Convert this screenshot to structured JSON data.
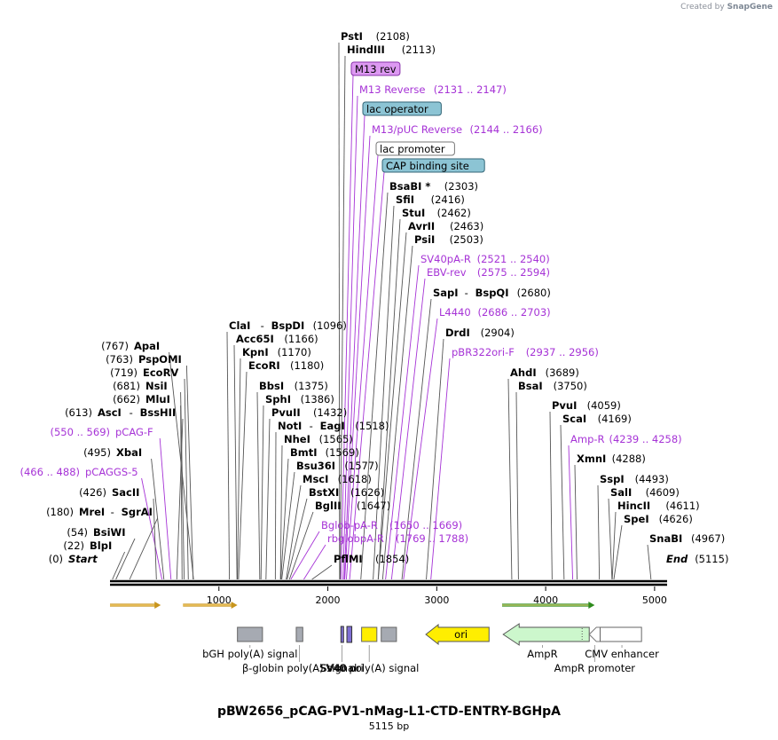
{
  "credit": {
    "prefix": "Created by",
    "brand": "SnapGene"
  },
  "plasmid": {
    "name": "pBW2656_pCAG-PV1-nMag-L1-CTD-ENTRY-BGHpA",
    "size_label": "5115 bp",
    "length": 5115
  },
  "ticks": [
    {
      "bp": 1000,
      "label": "1000"
    },
    {
      "bp": 2000,
      "label": "2000"
    },
    {
      "bp": 3000,
      "label": "3000"
    },
    {
      "bp": 4000,
      "label": "4000"
    },
    {
      "bp": 5000,
      "label": "5000"
    }
  ],
  "left_labels": [
    {
      "name": "ApaI",
      "pos": "(767)",
      "site": 767,
      "kind": "enzyme"
    },
    {
      "name": "PspOMI",
      "pos": "(763)",
      "site": 763,
      "kind": "enzyme"
    },
    {
      "name": "EcoRV",
      "pos": "(719)",
      "site": 719,
      "kind": "enzyme"
    },
    {
      "name": "NsiI",
      "pos": "(681)",
      "site": 681,
      "kind": "enzyme"
    },
    {
      "name": "MluI",
      "pos": "(662)",
      "site": 662,
      "kind": "enzyme"
    },
    {
      "name": "AscI",
      "name2": "BssHII",
      "pos": "(613)",
      "site": 613,
      "kind": "enzyme"
    },
    {
      "name": "pCAG-F",
      "pos": "(550 .. 569)",
      "site": 560,
      "kind": "primer"
    },
    {
      "name": "XbaI",
      "pos": "(495)",
      "site": 495,
      "kind": "enzyme"
    },
    {
      "name": "pCAGGS-5",
      "pos": "(466 .. 488)",
      "site": 477,
      "kind": "primer"
    },
    {
      "name": "SacII",
      "pos": "(426)",
      "site": 426,
      "kind": "enzyme"
    },
    {
      "name": "MreI",
      "name2": "SgrAI",
      "pos": "(180)",
      "site": 180,
      "kind": "enzyme"
    },
    {
      "name": "BsiWI",
      "pos": "(54)",
      "site": 54,
      "kind": "enzyme"
    },
    {
      "name": "BlpI",
      "pos": "(22)",
      "site": 22,
      "kind": "enzyme"
    },
    {
      "name": "Start",
      "pos": "(0)",
      "site": 0,
      "kind": "endpoint"
    }
  ],
  "right_labels": [
    {
      "name": "ClaI",
      "name2": "BspDI",
      "pos": "(1096)",
      "site": 1096,
      "kind": "enzyme"
    },
    {
      "name": "Acc65I",
      "pos": "(1166)",
      "site": 1166,
      "kind": "enzyme"
    },
    {
      "name": "KpnI",
      "pos": "(1170)",
      "site": 1170,
      "kind": "enzyme"
    },
    {
      "name": "EcoRI",
      "pos": "(1180)",
      "site": 1180,
      "kind": "enzyme"
    },
    {
      "name": "BbsI",
      "pos": "(1375)",
      "site": 1375,
      "kind": "enzyme"
    },
    {
      "name": "SphI",
      "pos": "(1386)",
      "site": 1386,
      "kind": "enzyme"
    },
    {
      "name": "PvuII",
      "pos": "(1432)",
      "site": 1432,
      "kind": "enzyme"
    },
    {
      "name": "NotI",
      "name2": "EagI",
      "pos": "(1518)",
      "site": 1518,
      "kind": "enzyme"
    },
    {
      "name": "NheI",
      "pos": "(1565)",
      "site": 1565,
      "kind": "enzyme"
    },
    {
      "name": "BmtI",
      "pos": "(1569)",
      "site": 1569,
      "kind": "enzyme"
    },
    {
      "name": "Bsu36I",
      "pos": "(1577)",
      "site": 1577,
      "kind": "enzyme"
    },
    {
      "name": "MscI",
      "pos": "(1618)",
      "site": 1618,
      "kind": "enzyme"
    },
    {
      "name": "BstXI",
      "pos": "(1626)",
      "site": 1626,
      "kind": "enzyme"
    },
    {
      "name": "BglII",
      "pos": "(1647)",
      "site": 1647,
      "kind": "enzyme"
    },
    {
      "name": "Bglob-pA-R",
      "pos": "(1650 .. 1669)",
      "site": 1660,
      "kind": "primer"
    },
    {
      "name": "rbglobpA-R",
      "pos": "(1769 .. 1788)",
      "site": 1779,
      "kind": "primer"
    },
    {
      "name": "PflMI",
      "pos": "(1854)",
      "site": 1854,
      "kind": "enzyme"
    },
    {
      "name": "PstI",
      "pos": "(2108)",
      "site": 2108,
      "kind": "enzyme"
    },
    {
      "name": "HindIII",
      "pos": "(2113)",
      "site": 2113,
      "kind": "enzyme"
    },
    {
      "name": "M13 rev",
      "pos": "",
      "site": 2120,
      "kind": "boxed",
      "fill": "#dd99f2",
      "stroke": "#8833aa"
    },
    {
      "name": "M13 Reverse",
      "pos": "(2131 .. 2147)",
      "site": 2139,
      "kind": "primer"
    },
    {
      "name": "lac operator",
      "pos": "",
      "site": 2150,
      "kind": "boxed",
      "fill": "#8cc4d4",
      "stroke": "#336677"
    },
    {
      "name": "M13/pUC Reverse",
      "pos": "(2144 .. 2166)",
      "site": 2155,
      "kind": "primer"
    },
    {
      "name": "lac promoter",
      "pos": "",
      "site": 2170,
      "kind": "boxed",
      "fill": "#ffffff",
      "stroke": "#777777"
    },
    {
      "name": "CAP binding site",
      "pos": "",
      "site": 2200,
      "kind": "boxed",
      "fill": "#8cc4d4",
      "stroke": "#336677"
    },
    {
      "name": "BsaBI *",
      "pos": "(2303)",
      "site": 2303,
      "kind": "enzyme"
    },
    {
      "name": "SfiI",
      "pos": "(2416)",
      "site": 2416,
      "kind": "enzyme"
    },
    {
      "name": "StuI",
      "pos": "(2462)",
      "site": 2462,
      "kind": "enzyme"
    },
    {
      "name": "AvrII",
      "pos": "(2463)",
      "site": 2463,
      "kind": "enzyme"
    },
    {
      "name": "PsiI",
      "pos": "(2503)",
      "site": 2503,
      "kind": "enzyme"
    },
    {
      "name": "SV40pA-R",
      "pos": "(2521 .. 2540)",
      "site": 2530,
      "kind": "primer"
    },
    {
      "name": "EBV-rev",
      "pos": "(2575 .. 2594)",
      "site": 2585,
      "kind": "primer"
    },
    {
      "name": "SapI",
      "name2": "BspQI",
      "pos": "(2680)",
      "site": 2680,
      "kind": "enzyme"
    },
    {
      "name": "L4440",
      "pos": "(2686 .. 2703)",
      "site": 2695,
      "kind": "primer"
    },
    {
      "name": "DrdI",
      "pos": "(2904)",
      "site": 2904,
      "kind": "enzyme"
    },
    {
      "name": "pBR322ori-F",
      "pos": "(2937 .. 2956)",
      "site": 2946,
      "kind": "primer"
    },
    {
      "name": "AhdI",
      "pos": "(3689)",
      "site": 3689,
      "kind": "enzyme"
    },
    {
      "name": "BsaI",
      "pos": "(3750)",
      "site": 3750,
      "kind": "enzyme"
    },
    {
      "name": "PvuI",
      "pos": "(4059)",
      "site": 4059,
      "kind": "enzyme"
    },
    {
      "name": "ScaI",
      "pos": "(4169)",
      "site": 4169,
      "kind": "enzyme"
    },
    {
      "name": "Amp-R",
      "pos": "(4239 .. 4258)",
      "site": 4248,
      "kind": "primer"
    },
    {
      "name": "XmnI",
      "pos": "(4288)",
      "site": 4288,
      "kind": "enzyme"
    },
    {
      "name": "SspI",
      "pos": "(4493)",
      "site": 4493,
      "kind": "enzyme"
    },
    {
      "name": "SalI",
      "pos": "(4609)",
      "site": 4609,
      "kind": "enzyme"
    },
    {
      "name": "HincII",
      "pos": "(4611)",
      "site": 4611,
      "kind": "enzyme"
    },
    {
      "name": "SpeI",
      "pos": "(4626)",
      "site": 4626,
      "kind": "enzyme"
    },
    {
      "name": "SnaBI",
      "pos": "(4967)",
      "site": 4967,
      "kind": "enzyme"
    },
    {
      "name": "End",
      "pos": "(5115)",
      "site": 5115,
      "kind": "endpoint"
    }
  ],
  "primer_arrows": [
    {
      "name": "pCAGGS-5 arrow",
      "start": 0,
      "end": 466,
      "color": "#c8951d"
    },
    {
      "name": "pCAG-F arrow",
      "start": 670,
      "end": 1170,
      "color": "#c8951d"
    },
    {
      "name": "Amp-R arrow",
      "start": 3600,
      "end": 4450,
      "color": "#2e8b1d"
    }
  ],
  "features": [
    {
      "name": "bGH poly(A) signal",
      "start": 1170,
      "end": 1400,
      "color": "#a6aab2"
    },
    {
      "name": "β-globin poly(A) signal",
      "start": 1710,
      "end": 1770,
      "color": "#a6aab2"
    },
    {
      "name": "SV40 ori",
      "start": 2120,
      "end": 2140,
      "color": "#7f6fd4"
    },
    {
      "name": "SV40 ori part",
      "start": 2175,
      "end": 2220,
      "color": "#7f6fd4"
    },
    {
      "name": "SV40 poly(A) signal",
      "start": 2310,
      "end": 2450,
      "color": "#ffee00"
    },
    {
      "name": "SV40 poly(A) signal part",
      "start": 2490,
      "end": 2630,
      "color": "#a6aab2"
    },
    {
      "name": "ori",
      "start": 2900,
      "end": 3480,
      "color": "#ffee00"
    },
    {
      "name": "AmpR",
      "start": 3610,
      "end": 4400,
      "color": "#ccf7cc"
    },
    {
      "name": "AmpR promoter",
      "start": 4400,
      "end": 4500,
      "color": "#ffffff"
    },
    {
      "name": "CMV enhancer",
      "start": 4500,
      "end": 4880,
      "color": "#ffffff"
    }
  ],
  "feature_labels": [
    {
      "text": "bGH poly(A) signal",
      "anchor": 1285,
      "row": 1
    },
    {
      "text": "β-globin poly(A) signal",
      "anchor": 1740,
      "row": 2
    },
    {
      "text": "SV40 ori",
      "anchor": 2130,
      "row": 2
    },
    {
      "text": "SV40 poly(A) signal",
      "anchor": 2380,
      "row": 2
    },
    {
      "text": "AmpR",
      "anchor": 3970,
      "row": 1
    },
    {
      "text": "AmpR promoter",
      "anchor": 4450,
      "row": 2
    },
    {
      "text": "CMV enhancer",
      "anchor": 4700,
      "row": 1
    }
  ],
  "ori_label": "ori"
}
